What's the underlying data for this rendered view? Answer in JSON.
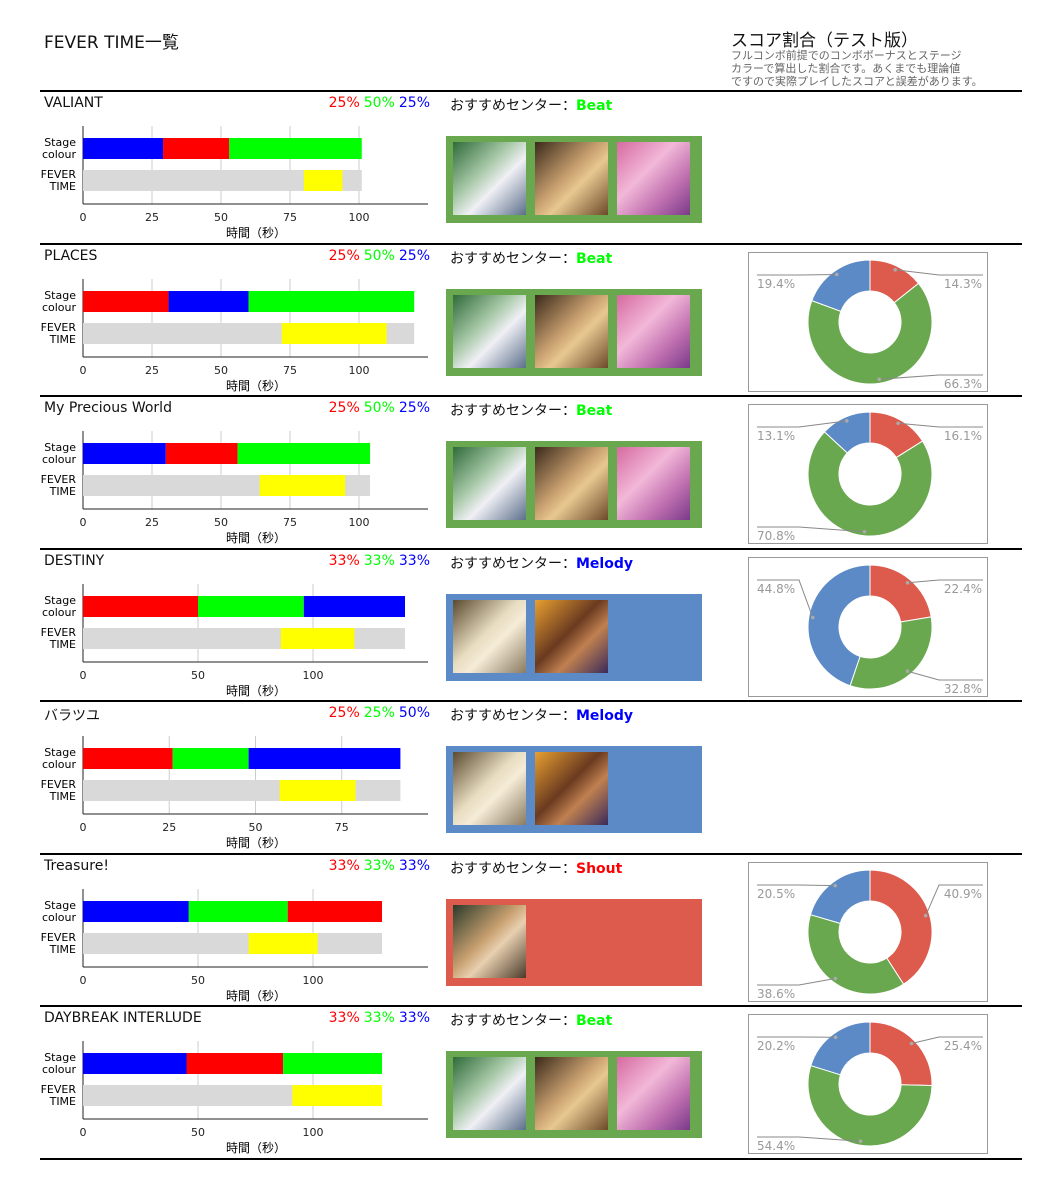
{
  "header": {
    "title": "FEVER TIME一覧",
    "score_title": "スコア割合（テスト版）",
    "score_note": [
      "フルコンボ前提でのコンボボーナスとステージ",
      "カラーで算出した割合です。あくまでも理論値",
      "ですので実際プレイしたスコアと誤差があります。"
    ]
  },
  "labels": {
    "recommend": "おすすめセンター：",
    "stage": [
      "Stage",
      "colour"
    ],
    "fever": [
      "FEVER",
      "TIME"
    ],
    "xlabel": "時間（秒）"
  },
  "colors": {
    "red": "#ff0000",
    "green": "#00ff00",
    "blue": "#0000ff",
    "yellow": "#ffff00",
    "gray": "#d9d9d9",
    "Beat": "#6aa84f",
    "Melody": "#5b8ac6",
    "Shout": "#dd5b4c",
    "pie_red": "#dd5b4c",
    "pie_green": "#6aa84f",
    "pie_blue": "#5b8ac6",
    "Beat_text": "#00ff00",
    "Melody_text": "#0000ff",
    "Shout_text": "#ff0000"
  },
  "chart_data": [
    {
      "type": "bar",
      "song": "VALIANT",
      "pct": [
        "25%",
        "50%",
        "25%"
      ],
      "center": "Beat",
      "ticks": [
        0,
        25,
        50,
        75,
        100
      ],
      "xlim": [
        0,
        125
      ],
      "stage": [
        {
          "c": "blue",
          "v": 29
        },
        {
          "c": "red",
          "v": 24
        },
        {
          "c": "green",
          "v": 48
        }
      ],
      "fever_total": 101,
      "fever": [
        80,
        94
      ],
      "cards": [
        "a",
        "b",
        "c"
      ],
      "pie": null
    },
    {
      "type": "bar",
      "song": "PLACES",
      "pct": [
        "25%",
        "50%",
        "25%"
      ],
      "center": "Beat",
      "ticks": [
        0,
        25,
        50,
        75,
        100
      ],
      "xlim": [
        0,
        125
      ],
      "stage": [
        {
          "c": "red",
          "v": 31
        },
        {
          "c": "blue",
          "v": 29
        },
        {
          "c": "green",
          "v": 60
        }
      ],
      "fever_total": 120,
      "fever": [
        72,
        110
      ],
      "cards": [
        "a",
        "b",
        "c"
      ],
      "pie": {
        "red": "14.3%",
        "green": "66.3%",
        "blue": "19.4%",
        "values": [
          14.3,
          66.3,
          19.4
        ]
      }
    },
    {
      "type": "bar",
      "song": "My Precious World",
      "pct": [
        "25%",
        "50%",
        "25%"
      ],
      "center": "Beat",
      "ticks": [
        0,
        25,
        50,
        75,
        100
      ],
      "xlim": [
        0,
        125
      ],
      "stage": [
        {
          "c": "blue",
          "v": 30
        },
        {
          "c": "red",
          "v": 26
        },
        {
          "c": "green",
          "v": 48
        }
      ],
      "fever_total": 104,
      "fever": [
        64,
        95
      ],
      "cards": [
        "a",
        "b",
        "c"
      ],
      "pie": {
        "red": "16.1%",
        "green": "70.8%",
        "blue": "13.1%",
        "values": [
          16.1,
          70.8,
          13.1
        ]
      }
    },
    {
      "type": "bar",
      "song": "DESTINY",
      "pct": [
        "33%",
        "33%",
        "33%"
      ],
      "center": "Melody",
      "ticks": [
        0,
        50,
        100
      ],
      "xlim": [
        0,
        150
      ],
      "stage": [
        {
          "c": "red",
          "v": 50
        },
        {
          "c": "green",
          "v": 46
        },
        {
          "c": "blue",
          "v": 44
        }
      ],
      "fever_total": 140,
      "fever": [
        86,
        118
      ],
      "cards": [
        "d",
        "e"
      ],
      "pie": {
        "red": "22.4%",
        "green": "32.8%",
        "blue": "44.8%",
        "values": [
          22.4,
          32.8,
          44.8
        ]
      }
    },
    {
      "type": "bar",
      "song": "バラツユ",
      "pct": [
        "25%",
        "25%",
        "50%"
      ],
      "center": "Melody",
      "ticks": [
        0,
        25,
        50,
        75
      ],
      "xlim": [
        0,
        100
      ],
      "stage": [
        {
          "c": "red",
          "v": 26
        },
        {
          "c": "green",
          "v": 22
        },
        {
          "c": "blue",
          "v": 44
        }
      ],
      "fever_total": 92,
      "fever": [
        57,
        79
      ],
      "cards": [
        "d",
        "e"
      ],
      "pie": null
    },
    {
      "type": "bar",
      "song": "Treasure!",
      "pct": [
        "33%",
        "33%",
        "33%"
      ],
      "center": "Shout",
      "ticks": [
        0,
        50,
        100
      ],
      "xlim": [
        0,
        150
      ],
      "stage": [
        {
          "c": "blue",
          "v": 46
        },
        {
          "c": "green",
          "v": 43
        },
        {
          "c": "red",
          "v": 41
        }
      ],
      "fever_total": 130,
      "fever": [
        72,
        102
      ],
      "cards": [
        "f"
      ],
      "pie": {
        "red": "40.9%",
        "green": "38.6%",
        "blue": "20.5%",
        "values": [
          40.9,
          38.6,
          20.5
        ]
      }
    },
    {
      "type": "bar",
      "song": "DAYBREAK INTERLUDE",
      "pct": [
        "33%",
        "33%",
        "33%"
      ],
      "center": "Beat",
      "ticks": [
        0,
        50,
        100
      ],
      "xlim": [
        0,
        150
      ],
      "stage": [
        {
          "c": "blue",
          "v": 45
        },
        {
          "c": "red",
          "v": 42
        },
        {
          "c": "green",
          "v": 43
        }
      ],
      "fever_total": 130,
      "fever": [
        91,
        130
      ],
      "cards": [
        "a",
        "b",
        "c"
      ],
      "pie": {
        "red": "25.4%",
        "green": "54.4%",
        "blue": "20.2%",
        "values": [
          25.4,
          54.4,
          20.2
        ]
      }
    }
  ]
}
